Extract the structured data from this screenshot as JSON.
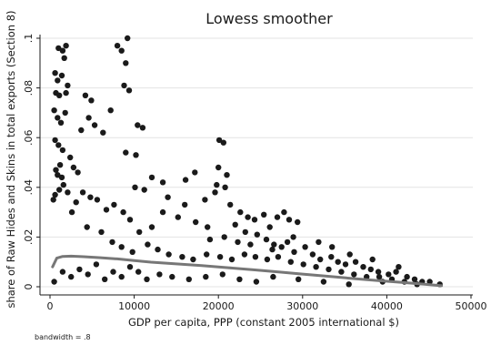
{
  "chart_data": {
    "type": "scatter",
    "title": "Lowess smoother",
    "xlabel": "GDP per capita, PPP (constant 2005 international $)",
    "ylabel": "share of Raw Hides and Skins in total exports (Section 8)",
    "note": "bandwidth = .8",
    "xlim": [
      0,
      50000
    ],
    "ylim": [
      0,
      0.1
    ],
    "x_ticks": [
      {
        "value": 0,
        "label": "0"
      },
      {
        "value": 10000,
        "label": "10000"
      },
      {
        "value": 20000,
        "label": "20000"
      },
      {
        "value": 30000,
        "label": "30000"
      },
      {
        "value": 40000,
        "label": "40000"
      },
      {
        "value": 50000,
        "label": "50000"
      }
    ],
    "y_ticks": [
      {
        "value": 0,
        "label": "0"
      },
      {
        "value": 0.02,
        "label": ".02"
      },
      {
        "value": 0.04,
        "label": ".04"
      },
      {
        "value": 0.06,
        "label": ".06"
      },
      {
        "value": 0.08,
        "label": ".08"
      },
      {
        "value": 0.1,
        "label": ".1"
      }
    ],
    "grid": true,
    "marker_color": "#1a1a1a",
    "line_color": "#777777",
    "points": [
      [
        1000,
        0.096
      ],
      [
        1500,
        0.095
      ],
      [
        1900,
        0.097
      ],
      [
        1700,
        0.092
      ],
      [
        8000,
        0.097
      ],
      [
        8500,
        0.095
      ],
      [
        9200,
        0.1
      ],
      [
        9000,
        0.09
      ],
      [
        600,
        0.086
      ],
      [
        900,
        0.083
      ],
      [
        1400,
        0.085
      ],
      [
        2100,
        0.081
      ],
      [
        8800,
        0.081
      ],
      [
        700,
        0.078
      ],
      [
        1100,
        0.077
      ],
      [
        1900,
        0.078
      ],
      [
        4200,
        0.077
      ],
      [
        4900,
        0.075
      ],
      [
        3700,
        0.063
      ],
      [
        4600,
        0.068
      ],
      [
        5300,
        0.065
      ],
      [
        6300,
        0.062
      ],
      [
        7200,
        0.071
      ],
      [
        9400,
        0.079
      ],
      [
        10400,
        0.065
      ],
      [
        11000,
        0.064
      ],
      [
        9000,
        0.054
      ],
      [
        10200,
        0.053
      ],
      [
        500,
        0.071
      ],
      [
        900,
        0.068
      ],
      [
        1300,
        0.066
      ],
      [
        1800,
        0.07
      ],
      [
        600,
        0.059
      ],
      [
        1000,
        0.057
      ],
      [
        1500,
        0.055
      ],
      [
        2400,
        0.052
      ],
      [
        2800,
        0.048
      ],
      [
        3300,
        0.046
      ],
      [
        1200,
        0.049
      ],
      [
        700,
        0.047
      ],
      [
        20100,
        0.059
      ],
      [
        20600,
        0.058
      ],
      [
        20000,
        0.048
      ],
      [
        21000,
        0.045
      ],
      [
        17200,
        0.046
      ],
      [
        16100,
        0.043
      ],
      [
        19800,
        0.041
      ],
      [
        20800,
        0.04
      ],
      [
        12100,
        0.044
      ],
      [
        13400,
        0.042
      ],
      [
        10100,
        0.04
      ],
      [
        11200,
        0.039
      ],
      [
        14000,
        0.036
      ],
      [
        16000,
        0.033
      ],
      [
        18400,
        0.035
      ],
      [
        19600,
        0.038
      ],
      [
        21400,
        0.033
      ],
      [
        22600,
        0.03
      ],
      [
        23500,
        0.028
      ],
      [
        24300,
        0.027
      ],
      [
        25400,
        0.029
      ],
      [
        26100,
        0.024
      ],
      [
        27000,
        0.028
      ],
      [
        27800,
        0.03
      ],
      [
        28400,
        0.027
      ],
      [
        29400,
        0.026
      ],
      [
        22000,
        0.025
      ],
      [
        23200,
        0.022
      ],
      [
        24600,
        0.021
      ],
      [
        25700,
        0.019
      ],
      [
        26600,
        0.017
      ],
      [
        27500,
        0.016
      ],
      [
        28200,
        0.018
      ],
      [
        29000,
        0.014
      ],
      [
        30300,
        0.016
      ],
      [
        31200,
        0.013
      ],
      [
        32100,
        0.011
      ],
      [
        33400,
        0.012
      ],
      [
        34200,
        0.01
      ],
      [
        35100,
        0.009
      ],
      [
        36300,
        0.01
      ],
      [
        37200,
        0.008
      ],
      [
        38100,
        0.007
      ],
      [
        39000,
        0.006
      ],
      [
        40200,
        0.005
      ],
      [
        41100,
        0.006
      ],
      [
        42400,
        0.004
      ],
      [
        43300,
        0.003
      ],
      [
        44200,
        0.002
      ],
      [
        45100,
        0.002
      ],
      [
        46300,
        0.001
      ],
      [
        13400,
        0.03
      ],
      [
        15200,
        0.028
      ],
      [
        17300,
        0.026
      ],
      [
        18700,
        0.024
      ],
      [
        12100,
        0.024
      ],
      [
        10600,
        0.022
      ],
      [
        9500,
        0.027
      ],
      [
        8700,
        0.03
      ],
      [
        7600,
        0.033
      ],
      [
        6700,
        0.031
      ],
      [
        5600,
        0.035
      ],
      [
        4800,
        0.036
      ],
      [
        3900,
        0.038
      ],
      [
        3100,
        0.034
      ],
      [
        2600,
        0.03
      ],
      [
        2100,
        0.038
      ],
      [
        1600,
        0.041
      ],
      [
        1100,
        0.039
      ],
      [
        600,
        0.037
      ],
      [
        400,
        0.035
      ],
      [
        900,
        0.045
      ],
      [
        1400,
        0.044
      ],
      [
        4400,
        0.024
      ],
      [
        6100,
        0.022
      ],
      [
        7400,
        0.018
      ],
      [
        8500,
        0.016
      ],
      [
        9800,
        0.014
      ],
      [
        11600,
        0.017
      ],
      [
        12800,
        0.015
      ],
      [
        14100,
        0.013
      ],
      [
        15700,
        0.012
      ],
      [
        17000,
        0.011
      ],
      [
        18600,
        0.013
      ],
      [
        20200,
        0.012
      ],
      [
        21600,
        0.011
      ],
      [
        23100,
        0.013
      ],
      [
        24400,
        0.012
      ],
      [
        25800,
        0.011
      ],
      [
        27100,
        0.012
      ],
      [
        28600,
        0.01
      ],
      [
        30100,
        0.009
      ],
      [
        31600,
        0.008
      ],
      [
        33100,
        0.007
      ],
      [
        34600,
        0.006
      ],
      [
        36100,
        0.005
      ],
      [
        37600,
        0.004
      ],
      [
        39100,
        0.004
      ],
      [
        40600,
        0.003
      ],
      [
        42100,
        0.002
      ],
      [
        43600,
        0.001
      ],
      [
        19000,
        0.019
      ],
      [
        20700,
        0.02
      ],
      [
        22300,
        0.018
      ],
      [
        23800,
        0.017
      ],
      [
        26400,
        0.015
      ],
      [
        28900,
        0.02
      ],
      [
        31900,
        0.018
      ],
      [
        33500,
        0.016
      ],
      [
        35600,
        0.013
      ],
      [
        38300,
        0.011
      ],
      [
        41400,
        0.008
      ],
      [
        13000,
        0.005
      ],
      [
        14500,
        0.004
      ],
      [
        16500,
        0.003
      ],
      [
        18500,
        0.004
      ],
      [
        20500,
        0.005
      ],
      [
        22500,
        0.003
      ],
      [
        24500,
        0.002
      ],
      [
        26500,
        0.004
      ],
      [
        29500,
        0.003
      ],
      [
        32500,
        0.002
      ],
      [
        35500,
        0.001
      ],
      [
        39500,
        0.002
      ],
      [
        10500,
        0.006
      ],
      [
        11500,
        0.003
      ],
      [
        9500,
        0.008
      ],
      [
        8500,
        0.004
      ],
      [
        7500,
        0.006
      ],
      [
        6500,
        0.003
      ],
      [
        5500,
        0.009
      ],
      [
        4500,
        0.005
      ],
      [
        3500,
        0.007
      ],
      [
        2500,
        0.004
      ],
      [
        1500,
        0.006
      ],
      [
        500,
        0.002
      ]
    ],
    "lowess": [
      [
        300,
        0.008
      ],
      [
        800,
        0.0115
      ],
      [
        1500,
        0.0122
      ],
      [
        2500,
        0.0123
      ],
      [
        4000,
        0.0121
      ],
      [
        6000,
        0.0117
      ],
      [
        8000,
        0.0112
      ],
      [
        10000,
        0.0105
      ],
      [
        12000,
        0.0099
      ],
      [
        15000,
        0.0092
      ],
      [
        18000,
        0.0085
      ],
      [
        21000,
        0.0077
      ],
      [
        24000,
        0.0069
      ],
      [
        27000,
        0.006
      ],
      [
        30000,
        0.0051
      ],
      [
        33000,
        0.0042
      ],
      [
        36000,
        0.0033
      ],
      [
        39000,
        0.0025
      ],
      [
        42000,
        0.0017
      ],
      [
        44500,
        0.001
      ],
      [
        46500,
        0.0004
      ]
    ]
  }
}
